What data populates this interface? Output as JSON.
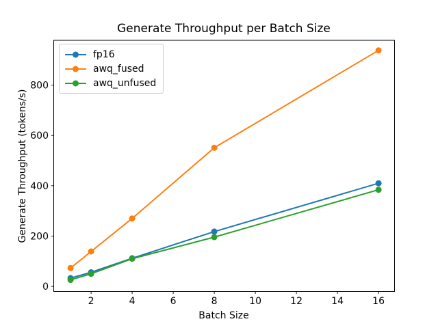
{
  "chart_data": {
    "type": "line",
    "title": "Generate Throughput per Batch Size",
    "xlabel": "Batch Size",
    "ylabel": "Generate Throughput (tokens/s)",
    "x": [
      1,
      2,
      4,
      8,
      16
    ],
    "series": [
      {
        "name": "fp16",
        "color": "#1f77b4",
        "values": [
          33,
          56,
          112,
          218,
          410
        ]
      },
      {
        "name": "awq_fused",
        "color": "#ff7f0e",
        "values": [
          73,
          139,
          270,
          551,
          938
        ]
      },
      {
        "name": "awq_unfused",
        "color": "#2ca02c",
        "values": [
          26,
          50,
          110,
          196,
          384
        ]
      }
    ],
    "xticks": [
      2,
      4,
      6,
      8,
      10,
      12,
      14,
      16
    ],
    "yticks": [
      0,
      200,
      400,
      600,
      800
    ],
    "xlim": [
      0.18,
      16.78
    ],
    "ylim": [
      -20,
      978
    ],
    "grid": false,
    "legend_position": "upper left",
    "marker": "o",
    "line_width": 2,
    "marker_radius": 4.5,
    "axis_color": "#000000",
    "background": "#ffffff"
  }
}
